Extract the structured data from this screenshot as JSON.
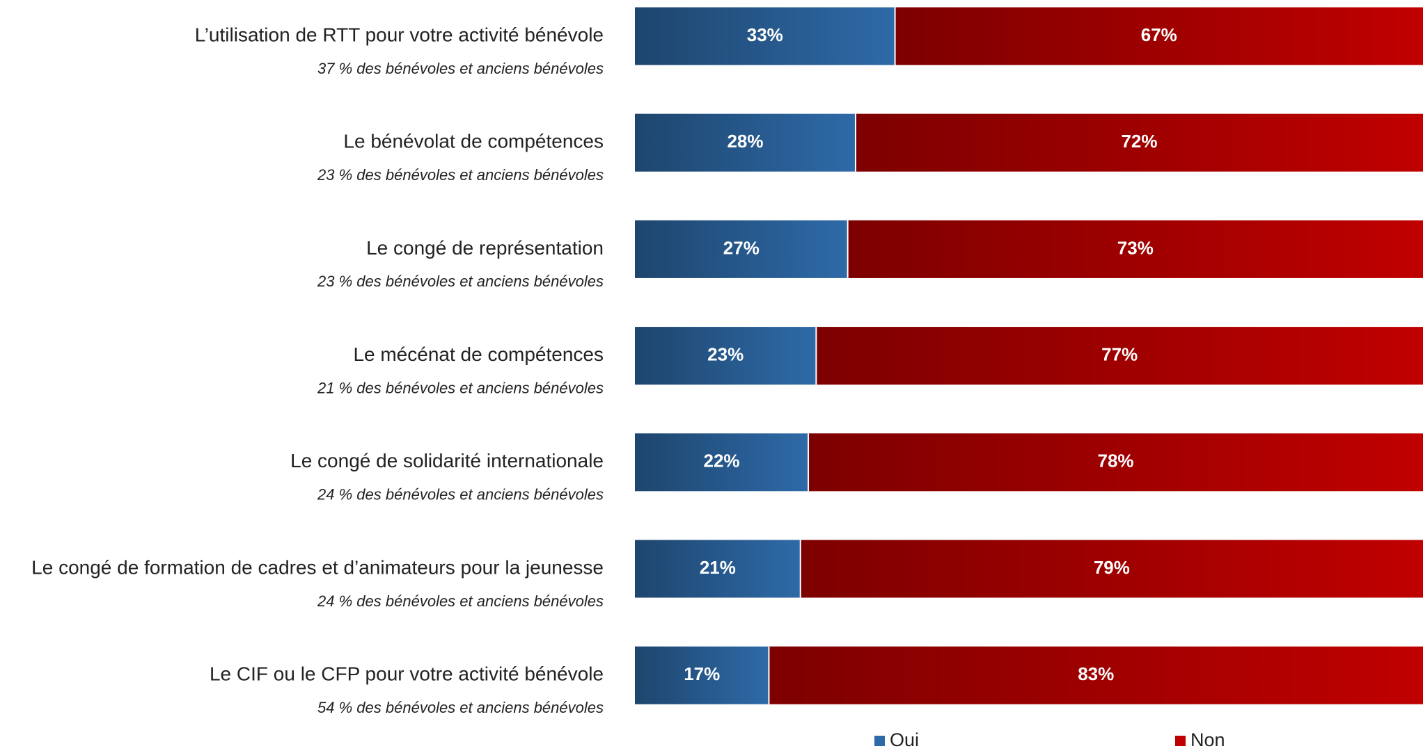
{
  "chart_data": {
    "type": "stacked_bar_horizontal",
    "categories": [
      "L’utilisation de RTT pour votre activité bénévole",
      "Le bénévolat de compétences",
      "Le congé de représentation",
      "Le mécénat de compétences",
      "Le congé de solidarité internationale",
      "Le congé de formation de cadres et d’animateurs pour la jeunesse",
      "Le CIF ou le CFP pour votre activité bénévole"
    ],
    "sublabels": [
      "37 % des bénévoles et anciens bénévoles",
      "23 % des bénévoles et anciens bénévoles",
      "23 % des bénévoles et anciens bénévoles",
      "21 % des bénévoles et anciens bénévoles",
      "24 % des bénévoles et anciens bénévoles",
      "24 % des bénévoles et anciens bénévoles",
      "54 % des bénévoles et anciens bénévoles"
    ],
    "series": [
      {
        "name": "Oui",
        "color": "#2e6aa8",
        "values": [
          33,
          28,
          27,
          23,
          22,
          21,
          17
        ],
        "value_labels": [
          "33%",
          "28%",
          "27%",
          "23%",
          "22%",
          "21%",
          "17%"
        ]
      },
      {
        "name": "Non",
        "color": "#c00000",
        "values": [
          67,
          72,
          73,
          77,
          78,
          79,
          83
        ],
        "value_labels": [
          "67%",
          "72%",
          "73%",
          "77%",
          "78%",
          "79%",
          "83%"
        ]
      }
    ],
    "xlim": [
      0,
      100
    ],
    "legend": "bottom"
  }
}
